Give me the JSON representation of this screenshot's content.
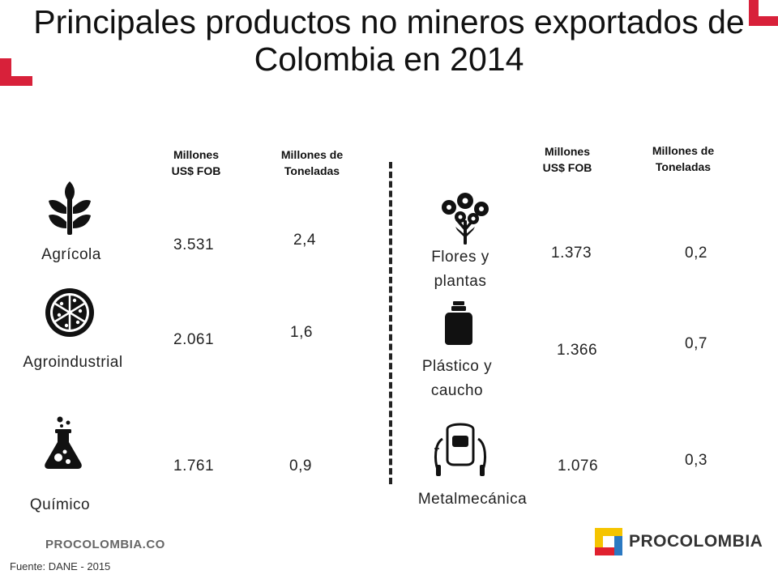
{
  "title": [
    "Principales productos no mineros exportados de",
    "Colombia en 2014"
  ],
  "columns": {
    "value": [
      "Millones",
      "US$ FOB"
    ],
    "volume": [
      "Millones de",
      "Toneladas"
    ]
  },
  "left_products": [
    {
      "name": [
        "Agrícola"
      ],
      "icon": "plant-icon",
      "value": "3.531",
      "volume": "2,4"
    },
    {
      "name": [
        "Agroindustrial"
      ],
      "icon": "pizza-icon",
      "value": "2.061",
      "volume": "1,6"
    },
    {
      "name": [
        "Químico"
      ],
      "icon": "flask-icon",
      "value": "1.761",
      "volume": "0,9"
    }
  ],
  "right_products": [
    {
      "name": [
        "Flores y",
        "plantas"
      ],
      "icon": "flowers-icon",
      "value": "1.373",
      "volume": "0,2"
    },
    {
      "name": [
        "Plástico y",
        "caucho"
      ],
      "icon": "bottle-icon",
      "value": "1.366",
      "volume": "0,7"
    },
    {
      "name": [
        "Metalmecánica"
      ],
      "icon": "welder-icon",
      "value": "1.076",
      "volume": "0,3"
    }
  ],
  "footer": {
    "website": "PROCOLOMBIA.CO",
    "source": "Fuente: DANE - 2015",
    "brand": "PROCOLOMBIA"
  },
  "colors": {
    "accent_red": "#d8213a",
    "logo_yellow": "#f5c400",
    "logo_blue": "#2b79c2",
    "logo_red": "#e0212f"
  }
}
